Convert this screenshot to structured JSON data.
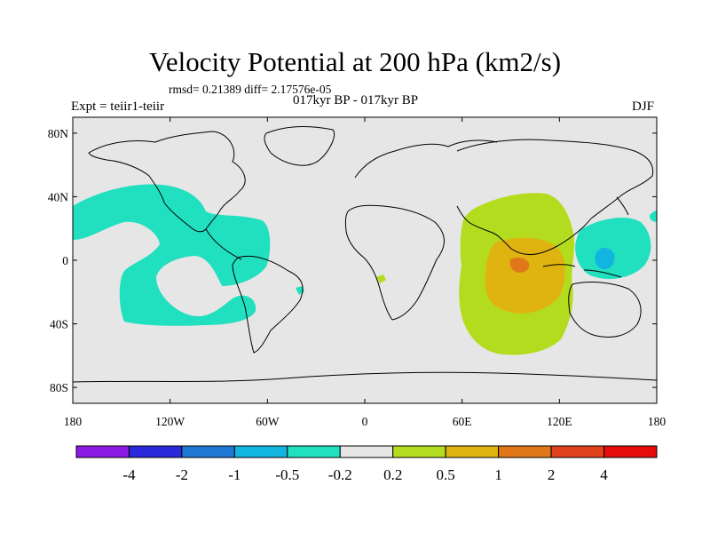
{
  "chart_data": {
    "type": "heatmap",
    "title": "Velocity Potential at 200 hPa (km2/s)",
    "stats_line": "rmsd= 0.21389 diff= 2.17576e-05",
    "subtitle": "017kyr BP - 017kyr BP",
    "left_label": "Expt = teiir1-teiir",
    "right_label": "DJF",
    "x_ticks": [
      "180",
      "120W",
      "60W",
      "0",
      "60E",
      "120E",
      "180"
    ],
    "x_tick_values": [
      -180,
      -120,
      -60,
      0,
      60,
      120,
      180
    ],
    "y_ticks": [
      "80N",
      "40N",
      "0",
      "40S",
      "80S"
    ],
    "y_tick_values": [
      80,
      40,
      0,
      -40,
      -80
    ],
    "xlim": [
      -180,
      180
    ],
    "ylim": [
      -90,
      90
    ],
    "colorbar": {
      "labels": [
        "-4",
        "-2",
        "-1",
        "-0.5",
        "-0.2",
        "0.2",
        "0.5",
        "1",
        "2",
        "4"
      ],
      "colors": [
        "#8c1ae6",
        "#2a2adc",
        "#1f78d6",
        "#12b4e0",
        "#20e0c0",
        "#e6e6e6",
        "#b4dc1e",
        "#e0b410",
        "#e0781a",
        "#e0401a",
        "#e60c0c"
      ]
    },
    "background_color": "#e6e6e6",
    "regions": [
      {
        "name": "west pacific–americas negative anomaly",
        "level": "-0.5 to -0.2",
        "color": "#20e0c0",
        "lon_range": [
          -180,
          -60
        ],
        "lat_range": [
          -40,
          50
        ]
      },
      {
        "name": "west pacific negative anomaly",
        "level": "-0.5 to -0.2",
        "color": "#20e0c0",
        "lon_range": [
          130,
          180
        ],
        "lat_range": [
          -10,
          30
        ]
      },
      {
        "name": "west pacific core",
        "level": "-1 to -0.5",
        "color": "#12b4e0",
        "lon_range": [
          140,
          150
        ],
        "lat_range": [
          -5,
          10
        ]
      },
      {
        "name": "indian ocean positive anomaly",
        "level": "0.2 to 0.5",
        "color": "#b4dc1e",
        "lon_range": [
          60,
          130
        ],
        "lat_range": [
          -60,
          40
        ]
      },
      {
        "name": "indian ocean core",
        "level": "0.5 to 1",
        "color": "#e0b410",
        "lon_range": [
          75,
          120
        ],
        "lat_range": [
          -30,
          20
        ]
      },
      {
        "name": "indian ocean maximum",
        "level": "1 to 2",
        "color": "#e0781a",
        "lon_range": [
          90,
          100
        ],
        "lat_range": [
          -5,
          5
        ]
      }
    ]
  }
}
